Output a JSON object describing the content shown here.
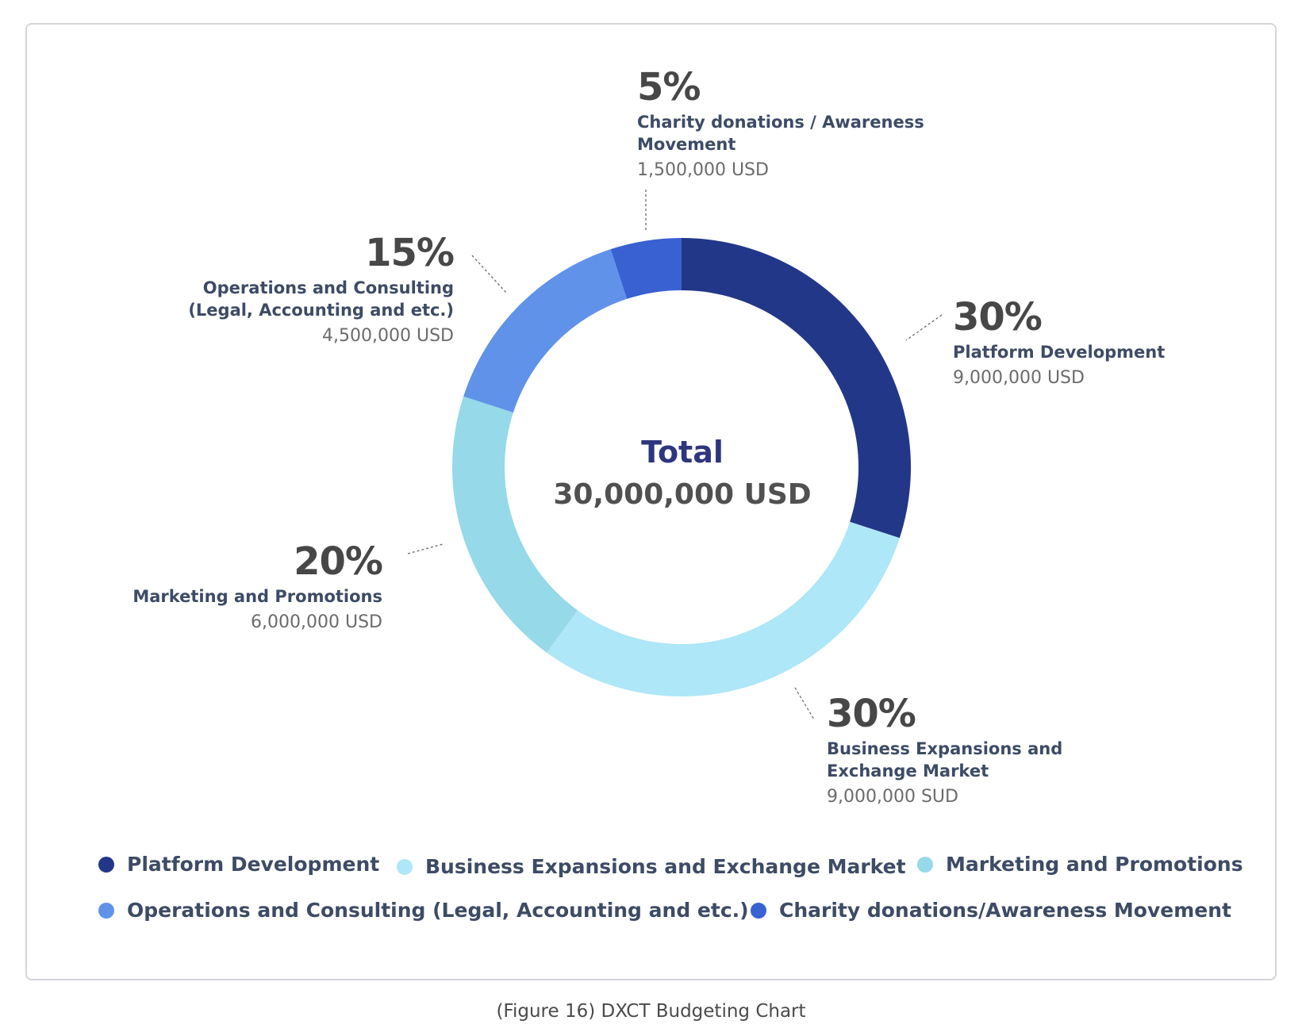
{
  "chart_data": {
    "type": "pie",
    "center_label": "Total",
    "center_value": "30,000,000 USD",
    "slices": [
      {
        "label": "Platform Development",
        "value": 30,
        "percent_label": "30%",
        "amount": "9,000,000 USD",
        "color": "#233789"
      },
      {
        "label": "Business Expansions and Exchange Market",
        "callout_lines": [
          "Business Expansions and",
          "Exchange Market"
        ],
        "value": 30,
        "percent_label": "30%",
        "amount": "9,000,000 SUD",
        "color": "#aee7f7"
      },
      {
        "label": "Marketing and Promotions",
        "value": 20,
        "percent_label": "20%",
        "amount": "6,000,000 USD",
        "color": "#96d9e9"
      },
      {
        "label": "Operations and Consulting (Legal, Accounting and etc.)",
        "callout_lines": [
          "Operations and Consulting",
          "(Legal, Accounting and etc.)"
        ],
        "value": 15,
        "percent_label": "15%",
        "amount": "4,500,000 USD",
        "color": "#6092ea"
      },
      {
        "label": "Charity donations / Awareness Movement",
        "callout_lines": [
          "Charity donations / Awareness",
          "Movement"
        ],
        "value": 5,
        "percent_label": "5%",
        "amount": "1,500,000 USD",
        "color": "#3961d1"
      }
    ],
    "legend": [
      {
        "label": "Platform Development",
        "color": "#233789"
      },
      {
        "label": "Business Expansions and Exchange Market",
        "color": "#aee7f7"
      },
      {
        "label": "Marketing and Promotions",
        "color": "#96d9e9"
      },
      {
        "label": "Operations and Consulting (Legal, Accounting and etc.)",
        "color": "#6092ea"
      },
      {
        "label": "Charity donations/Awareness Movement",
        "color": "#3961d1"
      }
    ],
    "legend_placement": "bottom"
  },
  "caption": "(Figure 16) DXCT Budgeting Chart"
}
